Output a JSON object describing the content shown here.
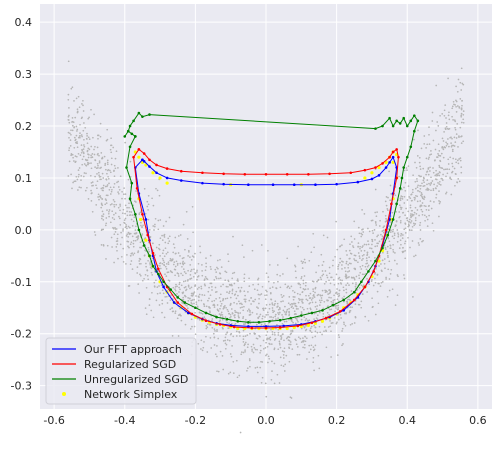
{
  "chart_data": {
    "type": "line",
    "title": "",
    "xlabel": "",
    "ylabel": "",
    "xlim": [
      -0.64,
      0.64
    ],
    "ylim": [
      -0.345,
      0.435
    ],
    "grid": true,
    "legend_position": "bottom-left",
    "colors": {
      "background": "#eaeaf2",
      "grid": "#ffffff",
      "scatter": "#b5b5b5"
    },
    "x_ticks": [
      -0.6,
      -0.4,
      -0.2,
      0.0,
      0.2,
      0.4,
      0.6
    ],
    "x_tick_labels": [
      "-0.6",
      "-0.4",
      "-0.2",
      "0.0",
      "0.2",
      "0.4",
      "0.6"
    ],
    "y_ticks": [
      -0.3,
      -0.2,
      -0.1,
      0.0,
      0.1,
      0.2,
      0.3,
      0.4
    ],
    "y_tick_labels": [
      "-0.3",
      "-0.2",
      "-0.1",
      "0.0",
      "0.1",
      "0.2",
      "0.3",
      "0.4"
    ],
    "series": [
      {
        "name": "Our FFT approach",
        "kind": "line",
        "color": "#0000ff",
        "x": [
          -0.35,
          -0.37,
          -0.36,
          -0.34,
          -0.33,
          -0.32,
          -0.31,
          -0.29,
          -0.26,
          -0.22,
          -0.18,
          -0.14,
          -0.1,
          -0.05,
          0.0,
          0.05,
          0.1,
          0.14,
          0.18,
          0.22,
          0.26,
          0.29,
          0.31,
          0.33,
          0.35,
          0.36,
          0.37,
          0.36,
          0.35,
          0.34,
          0.32,
          0.3,
          0.26,
          0.2,
          0.14,
          0.08,
          0.02,
          -0.05,
          -0.12,
          -0.18,
          -0.24,
          -0.28,
          -0.31,
          -0.33,
          -0.345,
          -0.35
        ],
        "y": [
          0.135,
          0.12,
          0.07,
          0.02,
          -0.02,
          -0.05,
          -0.08,
          -0.11,
          -0.14,
          -0.16,
          -0.172,
          -0.18,
          -0.184,
          -0.186,
          -0.186,
          -0.185,
          -0.182,
          -0.176,
          -0.168,
          -0.155,
          -0.13,
          -0.1,
          -0.07,
          -0.03,
          0.02,
          0.07,
          0.12,
          0.14,
          0.13,
          0.12,
          0.105,
          0.098,
          0.092,
          0.088,
          0.087,
          0.087,
          0.087,
          0.087,
          0.088,
          0.09,
          0.095,
          0.1,
          0.11,
          0.122,
          0.132,
          0.135
        ]
      },
      {
        "name": "Regularized SGD",
        "kind": "line",
        "color": "#ff0000",
        "x": [
          -0.36,
          -0.375,
          -0.365,
          -0.35,
          -0.335,
          -0.32,
          -0.305,
          -0.28,
          -0.25,
          -0.21,
          -0.17,
          -0.13,
          -0.09,
          -0.04,
          0.0,
          0.04,
          0.09,
          0.13,
          0.17,
          0.21,
          0.25,
          0.28,
          0.305,
          0.32,
          0.34,
          0.355,
          0.37,
          0.375,
          0.37,
          0.36,
          0.35,
          0.33,
          0.31,
          0.28,
          0.24,
          0.18,
          0.12,
          0.06,
          0.0,
          -0.06,
          -0.12,
          -0.18,
          -0.24,
          -0.28,
          -0.31,
          -0.33,
          -0.345,
          -0.36
        ],
        "y": [
          0.155,
          0.14,
          0.08,
          0.03,
          -0.01,
          -0.045,
          -0.075,
          -0.11,
          -0.14,
          -0.162,
          -0.175,
          -0.182,
          -0.187,
          -0.189,
          -0.189,
          -0.188,
          -0.185,
          -0.179,
          -0.17,
          -0.157,
          -0.135,
          -0.11,
          -0.08,
          -0.05,
          0.0,
          0.05,
          0.1,
          0.14,
          0.155,
          0.15,
          0.14,
          0.128,
          0.12,
          0.115,
          0.11,
          0.108,
          0.107,
          0.107,
          0.107,
          0.107,
          0.108,
          0.11,
          0.113,
          0.118,
          0.125,
          0.135,
          0.147,
          0.155
        ]
      },
      {
        "name": "Unregularized SGD",
        "kind": "line",
        "color": "#008000",
        "x": [
          -0.37,
          -0.385,
          -0.395,
          -0.38,
          -0.385,
          -0.37,
          -0.36,
          -0.345,
          -0.33,
          -0.32,
          -0.305,
          -0.29,
          -0.27,
          -0.25,
          -0.23,
          -0.2,
          -0.17,
          -0.14,
          -0.11,
          -0.08,
          -0.05,
          -0.02,
          0.01,
          0.04,
          0.07,
          0.1,
          0.13,
          0.16,
          0.19,
          0.22,
          0.25,
          0.27,
          0.29,
          0.31,
          0.33,
          0.345,
          0.36,
          0.37,
          0.38,
          0.385,
          0.39,
          0.4,
          0.41,
          0.42,
          0.43,
          0.42,
          0.41,
          0.4,
          0.39,
          0.38,
          0.37,
          0.36,
          0.35,
          0.33,
          0.31,
          -0.33,
          -0.35,
          -0.36,
          -0.375,
          -0.385,
          -0.39,
          -0.4,
          -0.39,
          -0.38,
          -0.37
        ],
        "y": [
          0.18,
          0.16,
          0.12,
          0.09,
          0.06,
          0.03,
          0.0,
          -0.03,
          -0.05,
          -0.07,
          -0.085,
          -0.1,
          -0.115,
          -0.13,
          -0.14,
          -0.15,
          -0.16,
          -0.168,
          -0.172,
          -0.176,
          -0.178,
          -0.178,
          -0.176,
          -0.174,
          -0.17,
          -0.165,
          -0.16,
          -0.155,
          -0.145,
          -0.135,
          -0.12,
          -0.1,
          -0.08,
          -0.06,
          -0.035,
          -0.01,
          0.02,
          0.05,
          0.08,
          0.1,
          0.12,
          0.14,
          0.16,
          0.19,
          0.21,
          0.22,
          0.21,
          0.2,
          0.215,
          0.205,
          0.21,
          0.2,
          0.215,
          0.2,
          0.195,
          0.222,
          0.218,
          0.225,
          0.21,
          0.2,
          0.19,
          0.18,
          0.19,
          0.185,
          0.18
        ]
      },
      {
        "name": "Network Simplex",
        "kind": "scatter",
        "color": "#ffff00",
        "x": [
          -0.36,
          -0.355,
          -0.34,
          -0.33,
          -0.32,
          -0.3,
          -0.28,
          -0.26,
          -0.24,
          -0.22,
          -0.2,
          -0.18,
          -0.16,
          -0.14,
          -0.12,
          -0.1,
          -0.08,
          -0.06,
          -0.04,
          -0.02,
          0.0,
          0.02,
          0.04,
          0.06,
          0.08,
          0.1,
          0.12,
          0.14,
          0.16,
          0.18,
          0.2,
          0.22,
          0.24,
          0.26,
          0.28,
          0.3,
          0.32,
          0.33,
          0.34,
          0.355,
          0.36,
          0.37,
          0.36,
          -0.37,
          -0.36,
          -0.35,
          -0.34,
          -0.32,
          -0.3,
          -0.28,
          0.28,
          0.3,
          0.32,
          0.34,
          0.35,
          0.36,
          0.37,
          0.1,
          -0.1
        ],
        "y": [
          0.06,
          0.02,
          -0.02,
          -0.05,
          -0.07,
          -0.1,
          -0.12,
          -0.14,
          -0.15,
          -0.16,
          -0.168,
          -0.174,
          -0.178,
          -0.182,
          -0.184,
          -0.187,
          -0.19,
          -0.19,
          -0.19,
          -0.19,
          -0.19,
          -0.19,
          -0.19,
          -0.19,
          -0.188,
          -0.186,
          -0.184,
          -0.18,
          -0.176,
          -0.17,
          -0.162,
          -0.15,
          -0.14,
          -0.125,
          -0.11,
          -0.09,
          -0.06,
          -0.04,
          -0.01,
          0.02,
          0.06,
          0.1,
          0.13,
          0.15,
          0.14,
          0.13,
          0.125,
          0.11,
          0.1,
          0.09,
          0.1,
          0.11,
          0.12,
          0.13,
          0.14,
          0.15,
          0.145,
          0.087,
          0.087
        ]
      }
    ]
  }
}
